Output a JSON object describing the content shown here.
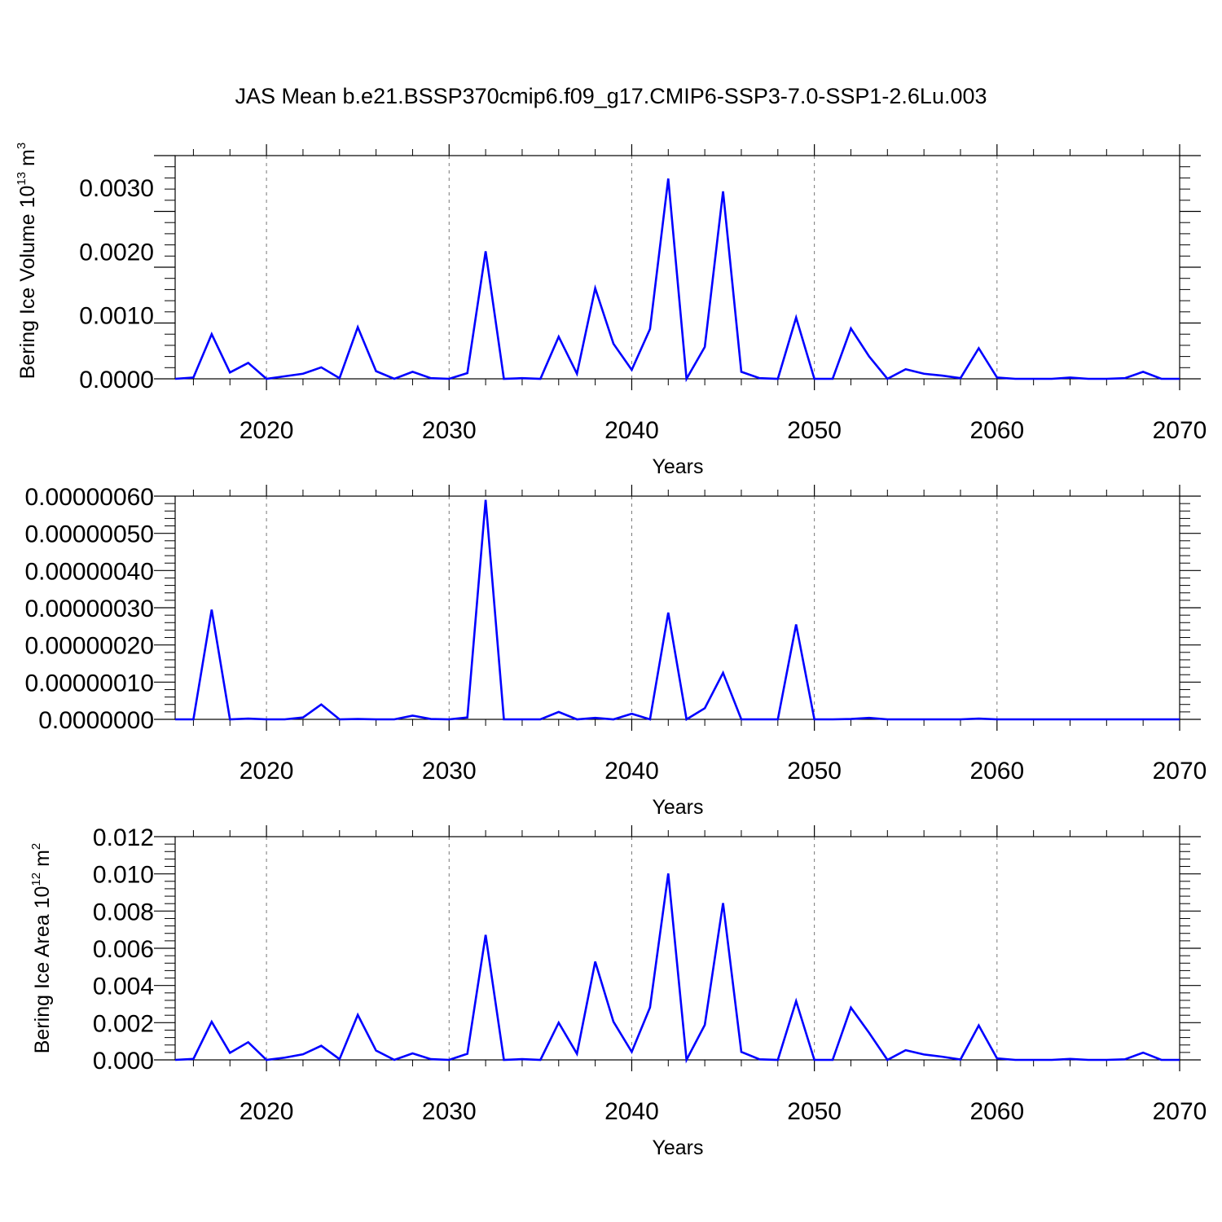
{
  "title": "JAS Mean b.e21.BSSP370cmip6.f09_g17.CMIP6-SSP3-7.0-SSP1-2.6Lu.003",
  "colors": {
    "series": "#0000ff",
    "axis": "#000000",
    "grid": "#777777"
  },
  "chart_data": [
    {
      "type": "line",
      "xlabel": "Years",
      "ylabel": {
        "text": "Bering Ice Volume 10",
        "sup1": "13",
        "mid": " m",
        "sup2": "3"
      },
      "xlim": [
        2015,
        2070
      ],
      "xticks": [
        "2020",
        "2030",
        "2040",
        "2050",
        "2060",
        "2070"
      ],
      "ylim": [
        0,
        0.0035
      ],
      "yticks": [
        "0.0000",
        "0.0010",
        "0.0020",
        "0.0030"
      ],
      "x": [
        2015,
        2016,
        2017,
        2018,
        2019,
        2020,
        2021,
        2022,
        2023,
        2024,
        2025,
        2026,
        2027,
        2028,
        2029,
        2030,
        2031,
        2032,
        2033,
        2034,
        2035,
        2036,
        2037,
        2038,
        2039,
        2040,
        2041,
        2042,
        2043,
        2044,
        2045,
        2046,
        2047,
        2048,
        2049,
        2050,
        2051,
        2052,
        2053,
        2054,
        2055,
        2056,
        2057,
        2058,
        2059,
        2060,
        2061,
        2062,
        2063,
        2064,
        2065,
        2066,
        2067,
        2068,
        2069,
        2070
      ],
      "series": [
        {
          "values": [
            0.0,
            2e-05,
            0.0007,
            0.0001,
            0.00025,
            0.0,
            4e-05,
            8e-05,
            0.00018,
            1e-05,
            0.00081,
            0.00012,
            0.0,
            0.00011,
            1e-05,
            0.0,
            9e-05,
            0.002,
            0.0,
            1e-05,
            0.0,
            0.00066,
            8e-05,
            0.00142,
            0.00055,
            0.00014,
            0.00078,
            0.00314,
            0.0,
            0.0005,
            0.00294,
            0.00011,
            1e-05,
            0.0,
            0.00096,
            0.0,
            0.0,
            0.00079,
            0.00035,
            0.0,
            0.00015,
            8e-05,
            5e-05,
            1e-05,
            0.00048,
            2e-05,
            0.0,
            0.0,
            0.0,
            2e-05,
            0.0,
            0.0,
            1e-05,
            0.00011,
            0.0,
            0.0
          ]
        }
      ]
    },
    {
      "type": "line",
      "xlabel": "Years",
      "ylabel": null,
      "xlim": [
        2015,
        2070
      ],
      "xticks": [
        "2020",
        "2030",
        "2040",
        "2050",
        "2060",
        "2070"
      ],
      "ylim": [
        0,
        6e-07
      ],
      "yticks": [
        "0.0000000",
        "0.00000010",
        "0.00000020",
        "0.00000030",
        "0.00000040",
        "0.00000050",
        "0.00000060"
      ],
      "x": [
        2015,
        2016,
        2017,
        2018,
        2019,
        2020,
        2021,
        2022,
        2023,
        2024,
        2025,
        2026,
        2027,
        2028,
        2029,
        2030,
        2031,
        2032,
        2033,
        2034,
        2035,
        2036,
        2037,
        2038,
        2039,
        2040,
        2041,
        2042,
        2043,
        2044,
        2045,
        2046,
        2047,
        2048,
        2049,
        2050,
        2051,
        2052,
        2053,
        2054,
        2055,
        2056,
        2057,
        2058,
        2059,
        2060,
        2061,
        2062,
        2063,
        2064,
        2065,
        2066,
        2067,
        2068,
        2069,
        2070
      ],
      "series": [
        {
          "values": [
            0.0,
            0.0,
            2.95e-07,
            0.0,
            2e-09,
            0.0,
            0.0,
            5e-09,
            4e-08,
            0.0,
            1e-09,
            0.0,
            0.0,
            1e-08,
            1e-09,
            0.0,
            5e-09,
            5.9e-07,
            0.0,
            0.0,
            0.0,
            2e-08,
            0.0,
            4e-09,
            0.0,
            1.5e-08,
            0.0,
            2.87e-07,
            0.0,
            3e-08,
            1.25e-07,
            0.0,
            0.0,
            0.0,
            2.55e-07,
            0.0,
            0.0,
            1e-09,
            4e-09,
            0.0,
            0.0,
            0.0,
            0.0,
            0.0,
            2e-09,
            0.0,
            0.0,
            0.0,
            0.0,
            0.0,
            0.0,
            0.0,
            0.0,
            0.0,
            0.0,
            0.0
          ]
        }
      ]
    },
    {
      "type": "line",
      "xlabel": "Years",
      "ylabel": {
        "text": "Bering Ice Area 10",
        "sup1": "12",
        "mid": " m",
        "sup2": "2"
      },
      "xlim": [
        2015,
        2070
      ],
      "xticks": [
        "2020",
        "2030",
        "2040",
        "2050",
        "2060",
        "2070"
      ],
      "ylim": [
        0,
        0.012
      ],
      "yticks": [
        "0.000",
        "0.002",
        "0.004",
        "0.006",
        "0.008",
        "0.010",
        "0.012"
      ],
      "x": [
        2015,
        2016,
        2017,
        2018,
        2019,
        2020,
        2021,
        2022,
        2023,
        2024,
        2025,
        2026,
        2027,
        2028,
        2029,
        2030,
        2031,
        2032,
        2033,
        2034,
        2035,
        2036,
        2037,
        2038,
        2039,
        2040,
        2041,
        2042,
        2043,
        2044,
        2045,
        2046,
        2047,
        2048,
        2049,
        2050,
        2051,
        2052,
        2053,
        2054,
        2055,
        2056,
        2057,
        2058,
        2059,
        2060,
        2061,
        2062,
        2063,
        2064,
        2065,
        2066,
        2067,
        2068,
        2069,
        2070
      ],
      "series": [
        {
          "values": [
            0.0,
            5e-05,
            0.00205,
            0.00038,
            0.00095,
            0.0,
            0.00012,
            0.0003,
            0.00076,
            4e-05,
            0.00242,
            0.0005,
            0.0,
            0.00035,
            4e-05,
            0.0,
            0.00033,
            0.00672,
            0.0,
            4e-05,
            0.0,
            0.002,
            0.00033,
            0.00528,
            0.00205,
            0.00043,
            0.00282,
            0.01002,
            0.0,
            0.00188,
            0.00843,
            0.00043,
            3e-05,
            0.0,
            0.00316,
            0.0,
            0.0,
            0.00281,
            0.00145,
            0.0,
            0.00052,
            0.00029,
            0.00017,
            2e-05,
            0.00185,
            8e-05,
            0.0,
            0.0,
            0.0,
            5e-05,
            0.0,
            0.0,
            3e-05,
            0.00039,
            0.0,
            0.0
          ]
        }
      ]
    }
  ]
}
